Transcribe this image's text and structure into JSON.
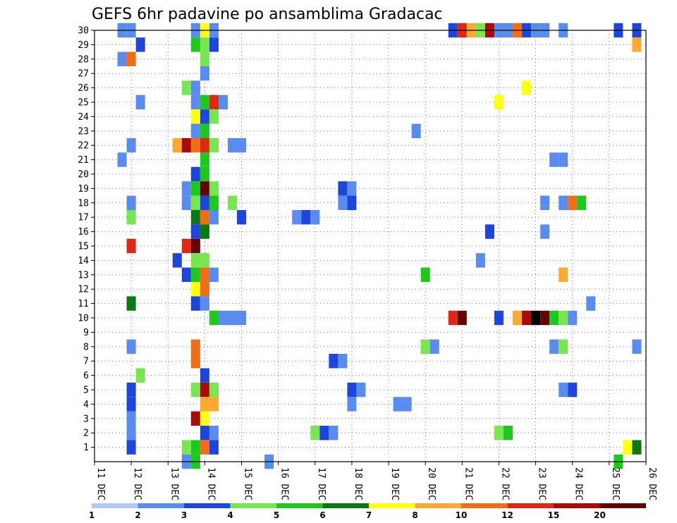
{
  "chart_data": {
    "type": "heatmap",
    "title": "GEFS 6hr padavine po ansamblima Gradacac",
    "y_tick_labels": [
      "1",
      "2",
      "3",
      "4",
      "5",
      "6",
      "7",
      "8",
      "9",
      "10",
      "11",
      "12",
      "13",
      "14",
      "15",
      "16",
      "17",
      "18",
      "19",
      "20",
      "21",
      "22",
      "23",
      "24",
      "25",
      "26",
      "27",
      "28",
      "29",
      "30"
    ],
    "x_tick_labels": [
      "11 DEC",
      "12 DEC",
      "13 DEC",
      "14 DEC",
      "15 DEC",
      "16 DEC",
      "17 DEC",
      "18 DEC",
      "19 DEC",
      "20 DEC",
      "21 DEC",
      "22 DEC",
      "23 DEC",
      "24 DEC",
      "25 DEC",
      "26 DEC"
    ],
    "x_range_days": [
      11,
      26
    ],
    "y_range_members": [
      0,
      30
    ],
    "grid": "dotted",
    "colorbar": {
      "tick_labels": [
        "1",
        "2",
        "3",
        "4",
        "5",
        "6",
        "7",
        "8",
        "10",
        "12",
        "15",
        "20"
      ],
      "colors": [
        "#b4c8f5",
        "#5a8cf0",
        "#1e46dc",
        "#78e650",
        "#1ec81e",
        "#0a7814",
        "#ffff14",
        "#faaa32",
        "#f06e14",
        "#dc2814",
        "#aa0a0a",
        "#640505"
      ]
    },
    "cells": [
      [
        30,
        11.75,
        1
      ],
      [
        30,
        12.0,
        1
      ],
      [
        30,
        13.75,
        1
      ],
      [
        30,
        14.0,
        6
      ],
      [
        30,
        14.25,
        1
      ],
      [
        30,
        20.75,
        2
      ],
      [
        30,
        21.0,
        9
      ],
      [
        30,
        21.25,
        7
      ],
      [
        30,
        21.5,
        3
      ],
      [
        30,
        21.75,
        10
      ],
      [
        30,
        22.0,
        1
      ],
      [
        30,
        22.25,
        1
      ],
      [
        30,
        22.5,
        8
      ],
      [
        30,
        22.75,
        2
      ],
      [
        30,
        23.0,
        1
      ],
      [
        30,
        23.25,
        1
      ],
      [
        30,
        23.75,
        1
      ],
      [
        30,
        25.25,
        2
      ],
      [
        30,
        25.75,
        2
      ],
      [
        29,
        12.25,
        2
      ],
      [
        29,
        13.75,
        4
      ],
      [
        29,
        14.0,
        3
      ],
      [
        29,
        14.25,
        2
      ],
      [
        29,
        25.75,
        7
      ],
      [
        28,
        11.75,
        1
      ],
      [
        28,
        12.0,
        8
      ],
      [
        28,
        14.0,
        3
      ],
      [
        27,
        14.0,
        1
      ],
      [
        26,
        13.5,
        3
      ],
      [
        26,
        13.75,
        1
      ],
      [
        26,
        22.75,
        6
      ],
      [
        25,
        12.25,
        1
      ],
      [
        25,
        13.75,
        1
      ],
      [
        25,
        14.0,
        4
      ],
      [
        25,
        14.25,
        9
      ],
      [
        25,
        14.5,
        1
      ],
      [
        25,
        22.0,
        6
      ],
      [
        24,
        13.75,
        6
      ],
      [
        24,
        14.0,
        2
      ],
      [
        24,
        14.25,
        3
      ],
      [
        23,
        13.75,
        1
      ],
      [
        23,
        14.0,
        4
      ],
      [
        23,
        19.75,
        1
      ],
      [
        22,
        12.0,
        1
      ],
      [
        22,
        13.25,
        7
      ],
      [
        22,
        13.5,
        10
      ],
      [
        22,
        13.75,
        8
      ],
      [
        22,
        14.0,
        9
      ],
      [
        22,
        14.25,
        3
      ],
      [
        22,
        14.75,
        1
      ],
      [
        22,
        15.0,
        1
      ],
      [
        21,
        11.75,
        1
      ],
      [
        21,
        14.0,
        4
      ],
      [
        21,
        23.5,
        1
      ],
      [
        21,
        23.75,
        1
      ],
      [
        20,
        13.75,
        2
      ],
      [
        20,
        14.0,
        4
      ],
      [
        19,
        13.5,
        1
      ],
      [
        19,
        13.75,
        4
      ],
      [
        19,
        14.0,
        11
      ],
      [
        19,
        14.25,
        3
      ],
      [
        19,
        17.75,
        2
      ],
      [
        19,
        18.0,
        1
      ],
      [
        18,
        12.0,
        1
      ],
      [
        18,
        13.5,
        1
      ],
      [
        18,
        13.75,
        3
      ],
      [
        18,
        14.0,
        2
      ],
      [
        18,
        14.25,
        4
      ],
      [
        18,
        14.75,
        3
      ],
      [
        18,
        17.75,
        1
      ],
      [
        18,
        18.0,
        2
      ],
      [
        18,
        23.25,
        1
      ],
      [
        18,
        23.75,
        1
      ],
      [
        18,
        24.0,
        8
      ],
      [
        18,
        24.25,
        4
      ],
      [
        17,
        12.0,
        3
      ],
      [
        17,
        13.75,
        5
      ],
      [
        17,
        14.0,
        8
      ],
      [
        17,
        14.25,
        1
      ],
      [
        17,
        15.0,
        2
      ],
      [
        17,
        16.5,
        1
      ],
      [
        17,
        16.75,
        2
      ],
      [
        17,
        17.0,
        1
      ],
      [
        16,
        13.75,
        2
      ],
      [
        16,
        14.0,
        5
      ],
      [
        16,
        21.75,
        2
      ],
      [
        16,
        23.25,
        1
      ],
      [
        15,
        12.0,
        9
      ],
      [
        15,
        13.5,
        9
      ],
      [
        15,
        13.75,
        11
      ],
      [
        14,
        13.25,
        2
      ],
      [
        14,
        13.75,
        3
      ],
      [
        14,
        14.0,
        3
      ],
      [
        14,
        21.5,
        1
      ],
      [
        13,
        13.5,
        2
      ],
      [
        13,
        13.75,
        4
      ],
      [
        13,
        14.0,
        8
      ],
      [
        13,
        14.25,
        1
      ],
      [
        13,
        20.0,
        4
      ],
      [
        13,
        23.75,
        7
      ],
      [
        12,
        13.75,
        6
      ],
      [
        12,
        14.0,
        8
      ],
      [
        11,
        12.0,
        5
      ],
      [
        11,
        13.75,
        2
      ],
      [
        11,
        14.0,
        1
      ],
      [
        11,
        24.5,
        1
      ],
      [
        10,
        14.25,
        4
      ],
      [
        10,
        14.5,
        1
      ],
      [
        10,
        14.75,
        1
      ],
      [
        10,
        15.0,
        1
      ],
      [
        10,
        20.75,
        9
      ],
      [
        10,
        21.0,
        11
      ],
      [
        10,
        22.0,
        2
      ],
      [
        10,
        22.5,
        7
      ],
      [
        10,
        22.75,
        10
      ],
      [
        10,
        23.0,
        12
      ],
      [
        10,
        23.25,
        11
      ],
      [
        10,
        23.5,
        4
      ],
      [
        10,
        23.75,
        3
      ],
      [
        10,
        24.0,
        1
      ],
      [
        8,
        12.0,
        1
      ],
      [
        8,
        13.75,
        8
      ],
      [
        8,
        20.0,
        3
      ],
      [
        8,
        20.25,
        1
      ],
      [
        8,
        23.5,
        1
      ],
      [
        8,
        23.75,
        3
      ],
      [
        8,
        25.75,
        1
      ],
      [
        7,
        13.75,
        8
      ],
      [
        7,
        17.5,
        2
      ],
      [
        7,
        17.75,
        1
      ],
      [
        6,
        12.25,
        3
      ],
      [
        6,
        14.0,
        2
      ],
      [
        5,
        12.0,
        2
      ],
      [
        5,
        13.75,
        3
      ],
      [
        5,
        14.0,
        10
      ],
      [
        5,
        14.25,
        3
      ],
      [
        5,
        18.0,
        2
      ],
      [
        5,
        18.25,
        1
      ],
      [
        5,
        23.75,
        1
      ],
      [
        5,
        24.0,
        2
      ],
      [
        4,
        12.0,
        2
      ],
      [
        4,
        14.0,
        7
      ],
      [
        4,
        14.25,
        7
      ],
      [
        4,
        18.0,
        1
      ],
      [
        4,
        19.25,
        1
      ],
      [
        4,
        19.5,
        1
      ],
      [
        3,
        12.0,
        1
      ],
      [
        3,
        13.75,
        10
      ],
      [
        3,
        14.0,
        6
      ],
      [
        2,
        12.0,
        1
      ],
      [
        2,
        14.0,
        2
      ],
      [
        2,
        14.25,
        1
      ],
      [
        2,
        17.0,
        3
      ],
      [
        2,
        17.25,
        2
      ],
      [
        2,
        17.5,
        1
      ],
      [
        2,
        22.0,
        3
      ],
      [
        2,
        22.25,
        4
      ],
      [
        1,
        12.0,
        2
      ],
      [
        1,
        13.5,
        3
      ],
      [
        1,
        13.75,
        4
      ],
      [
        1,
        14.0,
        8
      ],
      [
        1,
        14.25,
        2
      ],
      [
        1,
        25.5,
        6
      ],
      [
        1,
        25.75,
        5
      ],
      [
        0,
        13.5,
        1
      ],
      [
        0,
        13.75,
        4
      ],
      [
        0,
        15.75,
        1
      ],
      [
        0,
        25.25,
        4
      ]
    ]
  }
}
